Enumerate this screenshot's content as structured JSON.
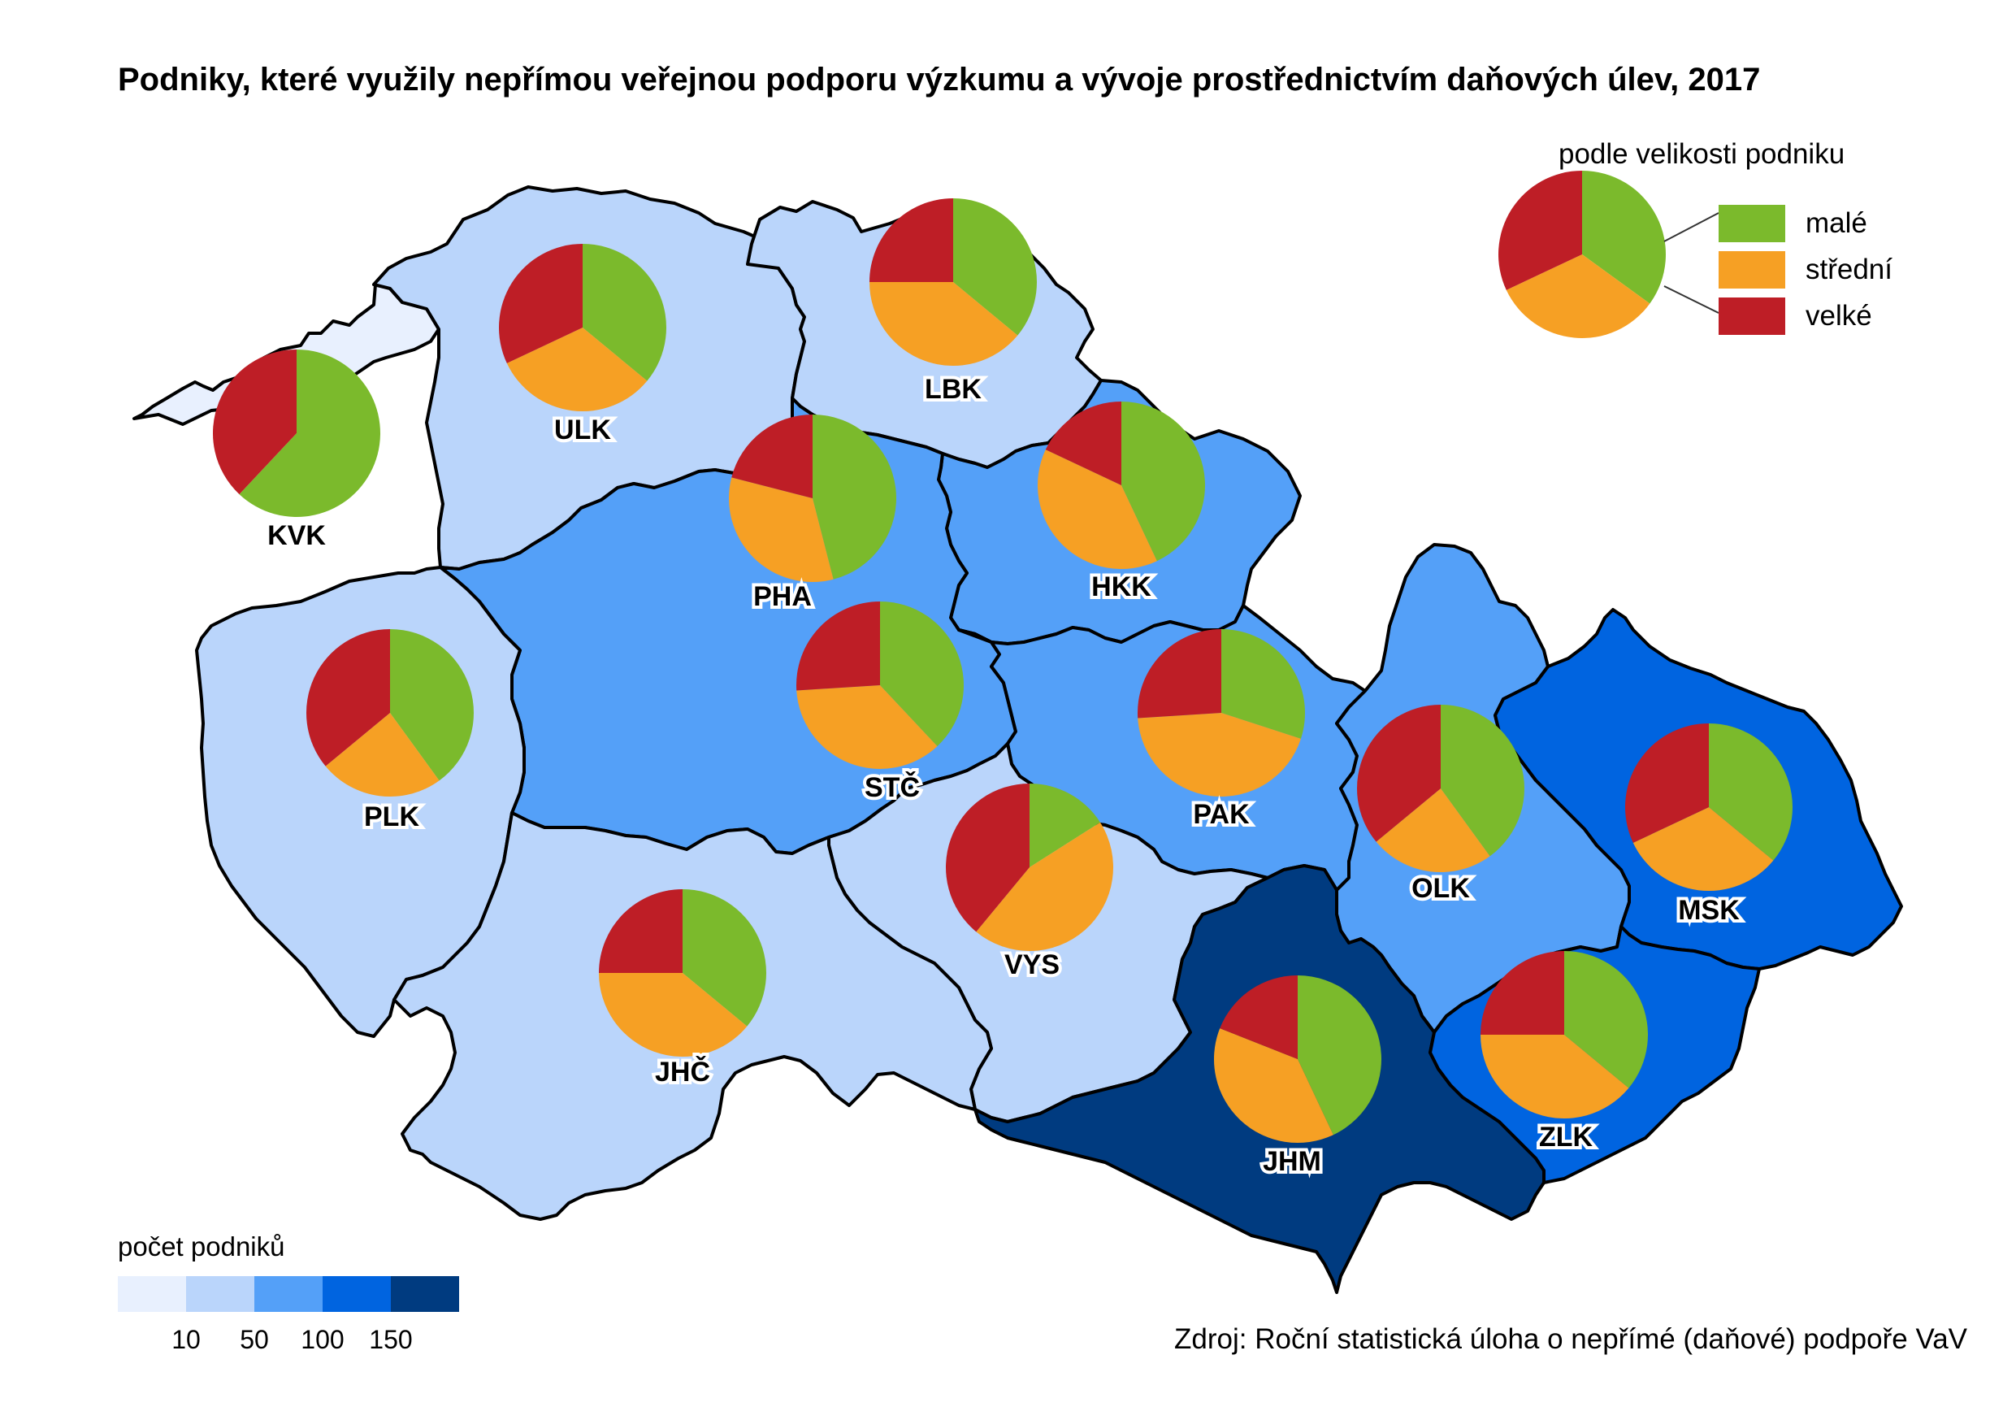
{
  "title": "Podniky, které využily nepřímou veřejnou podporu výzkumu a vývoje prostřednictvím daňových úlev, 2017",
  "size_legend": {
    "title": "podle velikosti podniku",
    "items": [
      {
        "label": "malé",
        "color": "#7bba2c"
      },
      {
        "label": "střední",
        "color": "#f6a024"
      },
      {
        "label": "velké",
        "color": "#be1e26"
      }
    ],
    "example_shares": [
      0.35,
      0.33,
      0.32
    ]
  },
  "count_legend": {
    "title": "počet podniků",
    "colors": [
      "#e8f0fe",
      "#bad5fb",
      "#54a0f8",
      "#0064e0",
      "#003b80"
    ],
    "ticks": [
      "10",
      "50",
      "100",
      "150"
    ]
  },
  "regions": [
    {
      "code": "KVK",
      "count_class": 0,
      "shares": [
        0.62,
        0.0,
        0.38
      ]
    },
    {
      "code": "ULK",
      "count_class": 1,
      "shares": [
        0.36,
        0.32,
        0.32
      ]
    },
    {
      "code": "LBK",
      "count_class": 1,
      "shares": [
        0.36,
        0.39,
        0.25
      ]
    },
    {
      "code": "HKK",
      "count_class": 2,
      "shares": [
        0.43,
        0.39,
        0.18
      ]
    },
    {
      "code": "PHA",
      "count_class": 4,
      "shares": [
        0.46,
        0.33,
        0.21
      ]
    },
    {
      "code": "STČ",
      "count_class": 2,
      "shares": [
        0.38,
        0.36,
        0.26
      ]
    },
    {
      "code": "PLK",
      "count_class": 1,
      "shares": [
        0.4,
        0.24,
        0.36
      ]
    },
    {
      "code": "PAK",
      "count_class": 2,
      "shares": [
        0.3,
        0.44,
        0.26
      ]
    },
    {
      "code": "OLK",
      "count_class": 2,
      "shares": [
        0.4,
        0.24,
        0.36
      ]
    },
    {
      "code": "MSK",
      "count_class": 3,
      "shares": [
        0.36,
        0.32,
        0.32
      ]
    },
    {
      "code": "VYS",
      "count_class": 1,
      "shares": [
        0.16,
        0.45,
        0.39
      ]
    },
    {
      "code": "JHČ",
      "count_class": 1,
      "shares": [
        0.36,
        0.39,
        0.25
      ]
    },
    {
      "code": "JHM",
      "count_class": 4,
      "shares": [
        0.43,
        0.38,
        0.19
      ]
    },
    {
      "code": "ZLK",
      "count_class": 3,
      "shares": [
        0.36,
        0.39,
        0.25
      ]
    }
  ],
  "source": "Zdroj: Roční statistická úloha o nepřímé (daňové) podpoře VaV"
}
